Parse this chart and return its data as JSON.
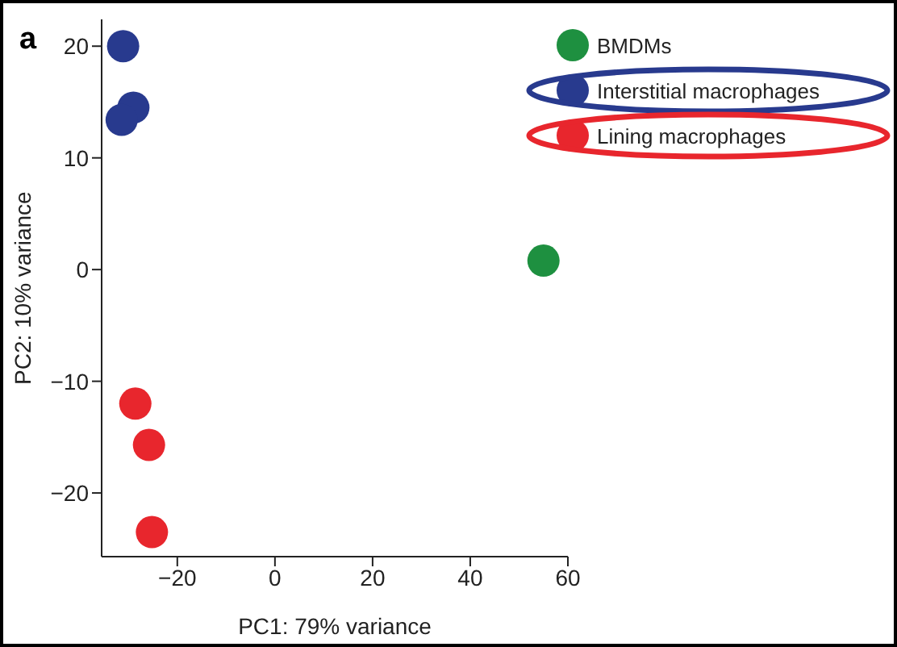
{
  "chart_data": {
    "type": "scatter",
    "xlabel": "PC1: 79% variance",
    "ylabel": "PC2: 10% variance",
    "annotations": [
      "a"
    ],
    "xlim": [
      -35.5,
      60
    ],
    "ylim": [
      -25.7,
      22.4
    ],
    "xticks": [
      -20,
      0,
      20,
      40,
      60
    ],
    "yticks": [
      -20,
      -10,
      0,
      10,
      20
    ],
    "grid": false,
    "legend": "top right",
    "marker": "circle",
    "series": [
      {
        "name": "BMDMs",
        "color": "#1e9040",
        "x": [
          55
        ],
        "values": [
          0.8
        ]
      },
      {
        "name": "Interstitial macrophages",
        "color": "#283a8e",
        "x": [
          -31.1,
          -29,
          -31.4
        ],
        "values": [
          20,
          14.5,
          13.4
        ]
      },
      {
        "name": "Lining macrophages",
        "color": "#e8262d",
        "x": [
          -28.6,
          -25.8,
          -25.2
        ],
        "values": [
          -12,
          -15.7,
          -23.5
        ]
      }
    ]
  }
}
